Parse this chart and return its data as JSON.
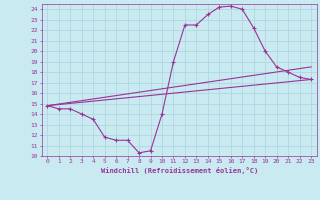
{
  "background_color": "#c8eaf0",
  "grid_color": "#b0d8e0",
  "line_color": "#993399",
  "marker_color": "#993399",
  "xlabel": "Windchill (Refroidissement éolien,°C)",
  "xlabel_color": "#993399",
  "tick_color": "#993399",
  "xlim": [
    -0.5,
    23.5
  ],
  "ylim": [
    10,
    24.5
  ],
  "xticks": [
    0,
    1,
    2,
    3,
    4,
    5,
    6,
    7,
    8,
    9,
    10,
    11,
    12,
    13,
    14,
    15,
    16,
    17,
    18,
    19,
    20,
    21,
    22,
    23
  ],
  "yticks": [
    10,
    11,
    12,
    13,
    14,
    15,
    16,
    17,
    18,
    19,
    20,
    21,
    22,
    23,
    24
  ],
  "curve1_x": [
    0,
    1,
    2,
    3,
    4,
    5,
    6,
    7,
    8,
    9,
    10,
    11,
    12,
    13,
    14,
    15,
    16,
    17,
    18,
    19,
    20,
    21,
    22,
    23
  ],
  "curve1_y": [
    14.8,
    14.5,
    14.5,
    14.0,
    13.5,
    11.8,
    11.5,
    11.5,
    10.3,
    10.5,
    14.0,
    19.0,
    22.5,
    22.5,
    23.5,
    24.2,
    24.3,
    24.0,
    22.2,
    20.0,
    18.5,
    18.0,
    17.5,
    17.3
  ],
  "curve2_x": [
    0,
    23
  ],
  "curve2_y": [
    14.8,
    18.5
  ],
  "curve3_x": [
    0,
    23
  ],
  "curve3_y": [
    14.8,
    17.3
  ],
  "figsize": [
    3.2,
    2.0
  ],
  "dpi": 100
}
